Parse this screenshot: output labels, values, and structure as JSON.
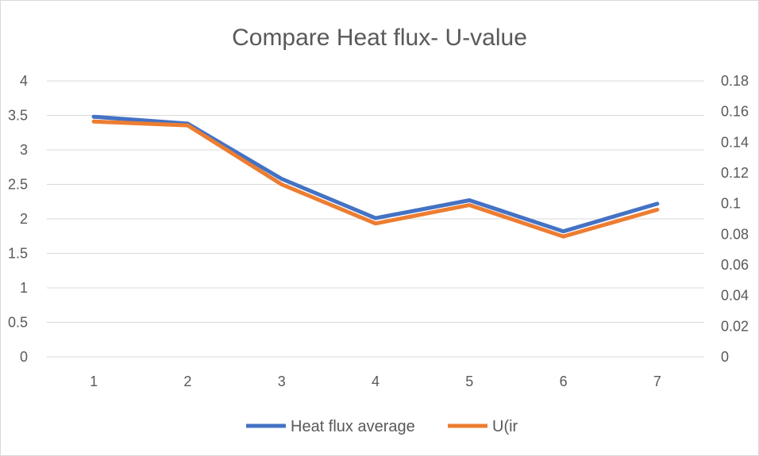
{
  "chart_data": {
    "type": "line",
    "title": "Compare Heat flux- U-value",
    "categories": [
      "1",
      "2",
      "3",
      "4",
      "5",
      "6",
      "7"
    ],
    "series": [
      {
        "name": "Heat flux average",
        "axis": "left",
        "color": "#4472c4",
        "values": [
          3.48,
          3.38,
          2.58,
          2.01,
          2.27,
          1.82,
          2.22
        ]
      },
      {
        "name": "U(ir",
        "axis": "right",
        "color": "#ed7d31",
        "values": [
          0.1535,
          0.151,
          0.1125,
          0.087,
          0.099,
          0.0785,
          0.096
        ]
      }
    ],
    "y_left": {
      "min": 0,
      "max": 4,
      "step": 0.5,
      "ticks": [
        "0",
        "0.5",
        "1",
        "1.5",
        "2",
        "2.5",
        "3",
        "3.5",
        "4"
      ]
    },
    "y_right": {
      "min": 0,
      "max": 0.18,
      "step": 0.02,
      "ticks": [
        "0",
        "0.02",
        "0.04",
        "0.06",
        "0.08",
        "0.1",
        "0.12",
        "0.14",
        "0.16",
        "0.18"
      ]
    },
    "grid": true,
    "legend": "bottom",
    "gridline_color": "#d9d9d9"
  }
}
